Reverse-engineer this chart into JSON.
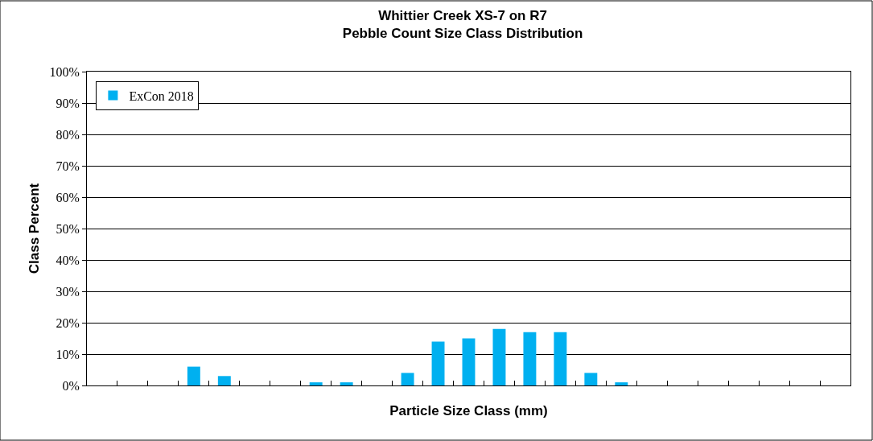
{
  "chart_data": {
    "type": "bar",
    "title": "Whittier Creek XS-7 on R7\nPebble Count Size Class Distribution",
    "xlabel": "Particle Size Class (mm)",
    "ylabel": "Class Percent",
    "categories": [
      null,
      null,
      null,
      null,
      null,
      null,
      null,
      null,
      null,
      null,
      null,
      null,
      null,
      null,
      null,
      null,
      null,
      null,
      null,
      null,
      null,
      null,
      null,
      null,
      null
    ],
    "series": [
      {
        "name": "ExCon 2018",
        "color": "#00b0f0",
        "values": [
          0,
          0,
          0,
          6,
          3,
          0,
          0,
          1,
          1,
          0,
          4,
          14,
          15,
          18,
          17,
          17,
          4,
          1,
          0,
          0,
          0,
          0,
          0,
          0,
          0
        ]
      }
    ],
    "ylim": [
      0,
      100
    ],
    "yticks": [
      {
        "value": 0,
        "label": "0%"
      },
      {
        "value": 10,
        "label": "10%"
      },
      {
        "value": 20,
        "label": "20%"
      },
      {
        "value": 30,
        "label": "30%"
      },
      {
        "value": 40,
        "label": "40%"
      },
      {
        "value": 50,
        "label": "50%"
      },
      {
        "value": 60,
        "label": "60%"
      },
      {
        "value": 70,
        "label": "70%"
      },
      {
        "value": 80,
        "label": "80%"
      },
      {
        "value": 90,
        "label": "90%"
      },
      {
        "value": 100,
        "label": "100%"
      }
    ],
    "grid": "y",
    "legend": "top left",
    "tick_labels": "y"
  }
}
